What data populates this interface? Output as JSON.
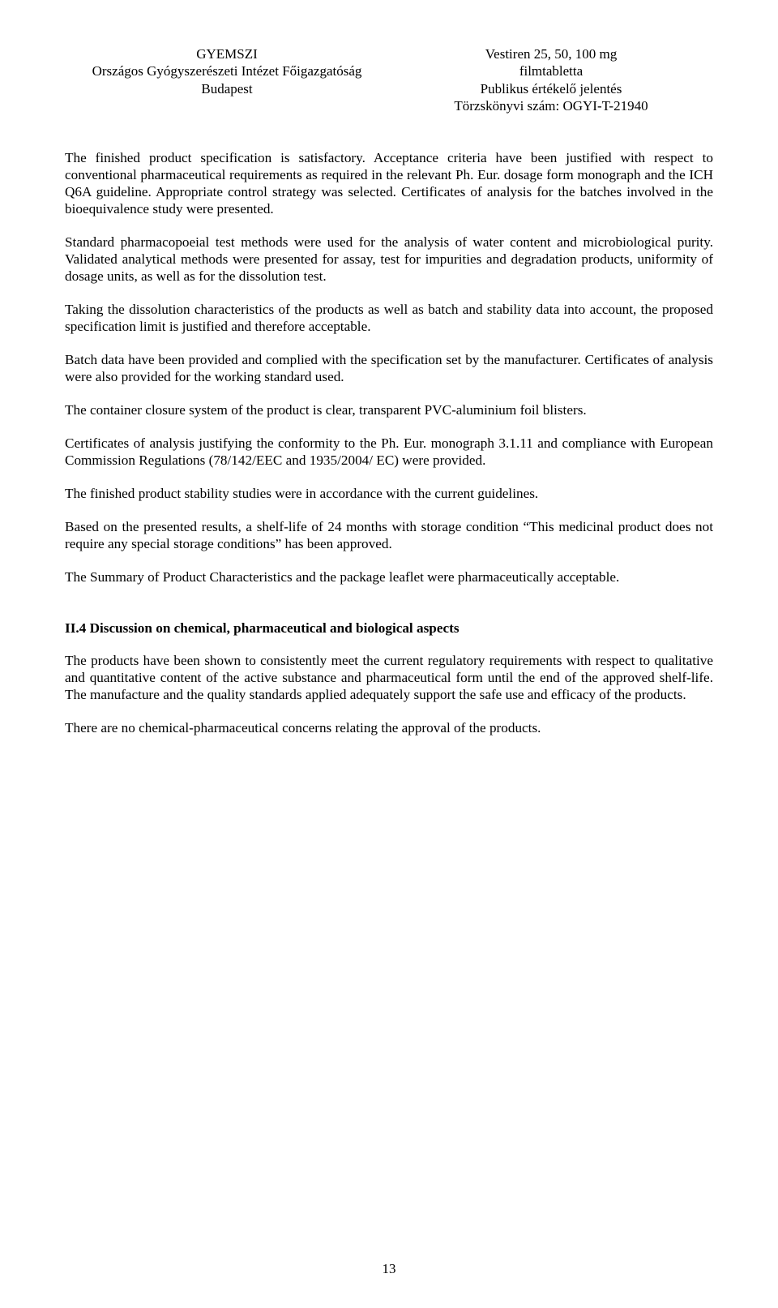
{
  "header": {
    "left": {
      "line1": "GYEMSZI",
      "line2": "Országos Gyógyszerészeti Intézet Főigazgatóság",
      "line3": "Budapest"
    },
    "right": {
      "line1": "Vestiren 25, 50, 100 mg",
      "line2": "filmtabletta",
      "line3": "Publikus értékelő jelentés",
      "line4": "Törzskönyvi szám: OGYI-T-21940"
    }
  },
  "paragraphs": {
    "p1": "The finished product specification is satisfactory. Acceptance criteria have been justified with respect to conventional pharmaceutical requirements as required in the relevant Ph. Eur. dosage form monograph and the ICH Q6A guideline. Appropriate control strategy was selected. Certificates of analysis for the batches involved in the bioequivalence study were presented.",
    "p2": "Standard pharmacopoeial test methods were used for the analysis of water content and microbiological purity. Validated analytical methods were presented for assay, test for impurities and degradation products, uniformity of dosage units, as well as for the dissolution test.",
    "p3": "Taking the dissolution characteristics of the products as well as batch and stability data into account, the proposed specification limit is justified and therefore acceptable.",
    "p4": "Batch data have been provided and complied with the specification set by the manufacturer. Certificates of analysis were also provided for the working standard used.",
    "p5": "The container closure system of the product is clear, transparent PVC-aluminium foil blisters.",
    "p6": "Certificates of analysis justifying the conformity to the Ph. Eur. monograph 3.1.11 and compliance with European Commission Regulations (78/142/EEC and 1935/2004/ EC) were provided.",
    "p7": "The finished product stability studies were in accordance with the current guidelines.",
    "p8": "Based on the presented results, a shelf-life of 24 months with storage condition “This medicinal product does not require any special storage conditions” has been approved.",
    "p9": "The Summary of Product Characteristics and the package leaflet were pharmaceutically acceptable.",
    "heading": "II.4 Discussion on chemical, pharmaceutical and biological aspects",
    "p10": "The products have been shown to consistently meet the current regulatory requirements with respect to qualitative and quantitative content of the active substance and pharmaceutical form until the end of the approved shelf-life. The manufacture and the quality standards applied adequately support the safe use and efficacy of the products.",
    "p11": "There are no chemical-pharmaceutical concerns relating the approval of the products."
  },
  "page_number": "13"
}
